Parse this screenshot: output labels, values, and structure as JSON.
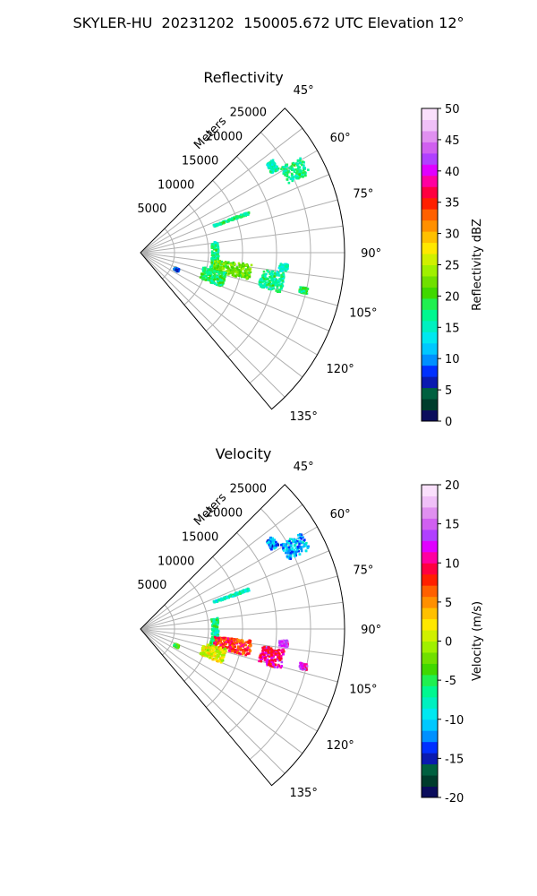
{
  "figure": {
    "suptitle": "SKYLER-HU  20231202  150005.672 UTC Elevation 12°"
  },
  "chart_data": [
    {
      "type": "heatmap",
      "panel": "ppi-sector",
      "title": "Reflectivity",
      "radial_label": "Meters",
      "radial_ticks": [
        5000,
        10000,
        15000,
        20000,
        25000
      ],
      "radial_range": [
        0,
        30000
      ],
      "azimuth_range": [
        45,
        140
      ],
      "azimuth_ticks": [
        "45°",
        "60°",
        "75°",
        "90°",
        "105°",
        "120°",
        "135°"
      ],
      "grid": true,
      "colorbar": {
        "label": "Reflectivity dBZ",
        "range": [
          0,
          50
        ],
        "ticks": [
          0,
          5,
          10,
          15,
          20,
          25,
          30,
          35,
          40,
          45,
          50
        ],
        "colors": [
          "#0b0d5c",
          "#003c2c",
          "#006040",
          "#0a1ab0",
          "#0030ff",
          "#0090ff",
          "#00c8ff",
          "#00e8f0",
          "#00f0c0",
          "#00f890",
          "#20f050",
          "#40d800",
          "#70e000",
          "#a0f000",
          "#d0f000",
          "#ffe800",
          "#ffc000",
          "#ff9000",
          "#ff6000",
          "#ff2000",
          "#ff0040",
          "#ff00a0",
          "#e000ff",
          "#b040ff",
          "#d060f0",
          "#e090f0",
          "#f0c0f8",
          "#fae0fc"
        ]
      },
      "clusters": [
        {
          "az": 62,
          "r": [
            24000,
            27500
          ],
          "spread": 3,
          "value": 17
        },
        {
          "az": 57,
          "r": [
            22500,
            23800
          ],
          "spread": 2,
          "value": 16
        },
        {
          "az": 70,
          "r": [
            11500,
            17000
          ],
          "spread": 0.6,
          "value": 17
        },
        {
          "az": 93,
          "r": [
            10500,
            11500
          ],
          "spread": 11,
          "value": 17
        },
        {
          "az": 100,
          "r": [
            11000,
            16500
          ],
          "spread": 4,
          "value": 22
        },
        {
          "az": 108,
          "r": [
            9500,
            13000
          ],
          "spread": 5,
          "value": 18
        },
        {
          "az": 102,
          "r": [
            18000,
            21500
          ],
          "spread": 4,
          "value": 17
        },
        {
          "az": 96,
          "r": [
            20500,
            21800
          ],
          "spread": 1.5,
          "value": 15
        },
        {
          "az": 103,
          "r": [
            24000,
            25200
          ],
          "spread": 1,
          "value": 18
        },
        {
          "az": 115,
          "r": [
            5500,
            6200
          ],
          "spread": 2,
          "value": 8
        }
      ]
    },
    {
      "type": "heatmap",
      "panel": "ppi-sector",
      "title": "Velocity",
      "radial_label": "Meters",
      "radial_ticks": [
        5000,
        10000,
        15000,
        20000,
        25000
      ],
      "radial_range": [
        0,
        30000
      ],
      "azimuth_range": [
        45,
        140
      ],
      "azimuth_ticks": [
        "45°",
        "60°",
        "75°",
        "90°",
        "105°",
        "120°",
        "135°"
      ],
      "grid": true,
      "colorbar": {
        "label": "Velocity (m/s)",
        "range": [
          -20,
          20
        ],
        "ticks": [
          -20,
          -15,
          -10,
          -5,
          0,
          5,
          10,
          15,
          20
        ],
        "colors": [
          "#0b0d5c",
          "#003c2c",
          "#006040",
          "#0a1ab0",
          "#0030ff",
          "#0090ff",
          "#00c8ff",
          "#00e8f0",
          "#00f0c0",
          "#00f890",
          "#20f050",
          "#40d800",
          "#70e000",
          "#a0f000",
          "#d0f000",
          "#ffe800",
          "#ffc000",
          "#ff9000",
          "#ff6000",
          "#ff2000",
          "#ff0040",
          "#ff00a0",
          "#e000ff",
          "#b040ff",
          "#d060f0",
          "#e090f0",
          "#f0c0f8",
          "#fae0fc"
        ]
      },
      "clusters": [
        {
          "az": 62,
          "r": [
            24000,
            27500
          ],
          "spread": 3,
          "value": -11
        },
        {
          "az": 57,
          "r": [
            22500,
            23800
          ],
          "spread": 2,
          "value": -12
        },
        {
          "az": 70,
          "r": [
            11500,
            17000
          ],
          "spread": 0.6,
          "value": -8
        },
        {
          "az": 93,
          "r": [
            10500,
            11500
          ],
          "spread": 11,
          "value": -7
        },
        {
          "az": 100,
          "r": [
            11000,
            16500
          ],
          "spread": 4,
          "value": 8
        },
        {
          "az": 108,
          "r": [
            9500,
            13000
          ],
          "spread": 5,
          "value": 1
        },
        {
          "az": 102,
          "r": [
            18000,
            21500
          ],
          "spread": 4,
          "value": 10
        },
        {
          "az": 96,
          "r": [
            20500,
            21800
          ],
          "spread": 1.5,
          "value": 14
        },
        {
          "az": 103,
          "r": [
            24000,
            25200
          ],
          "spread": 1,
          "value": 12
        },
        {
          "az": 115,
          "r": [
            5500,
            6200
          ],
          "spread": 2,
          "value": -3
        }
      ]
    }
  ]
}
